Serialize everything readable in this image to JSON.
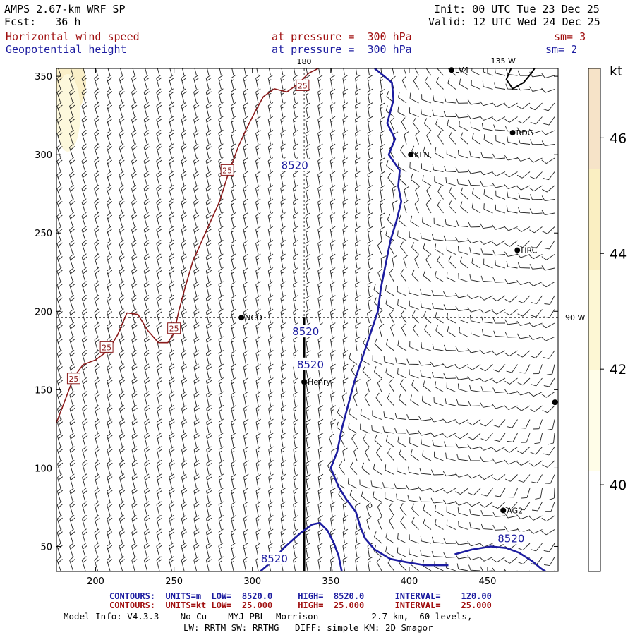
{
  "header": {
    "model_title": "AMPS 2.67-km WRF SP",
    "forecast": "Fcst:   36 h",
    "init": "Init: 00 UTC Tue 23 Dec 25",
    "valid": "Valid: 12 UTC Wed 24 Dec 25",
    "field1_name": "Horizontal wind speed",
    "field1_level": "at pressure =  300 hPa",
    "field1_sm": "sm= 3",
    "field2_name": "Geopotential height",
    "field2_level": "at pressure =  300 hPa",
    "field2_sm": "sm= 2"
  },
  "footer": {
    "line1": "CONTOURS:  UNITS=m  LOW=  8520.0     HIGH=  8520.0      INTERVAL=    120.00",
    "line2": "CONTOURS:  UNITS=kt LOW=  25.000     HIGH=  25.000      INTERVAL=    25.000",
    "model_info": "Model Info: V4.3.3    No Cu    MYJ PBL  Morrison          2.7 km,  60 levels,",
    "model_info2": "LW: RRTM SW: RRTMG   DIFF: simple KM: 2D Smagor"
  },
  "colors": {
    "height_contour": "#1c1ca0",
    "speed_contour": "#8b1a1a",
    "shade_40": "#fffde8",
    "shade_42": "#fdf7d4",
    "shade_44": "#faefc2",
    "shade_46": "#f6e3c8"
  },
  "chart_data": {
    "type": "contour-map",
    "x_ticks": [
      200,
      250,
      300,
      350,
      400,
      450
    ],
    "y_ticks": [
      50,
      100,
      150,
      200,
      250,
      300,
      350
    ],
    "xlim": [
      175,
      495
    ],
    "ylim": [
      34,
      355
    ],
    "lon_labels": {
      "top_180": "180",
      "top_135w": "135 W",
      "right_90w": "90 W"
    },
    "colorbar": {
      "unit": "kt",
      "ticks": [
        40,
        42,
        44,
        46
      ],
      "range": [
        38.5,
        47.2
      ]
    },
    "height_contour": {
      "value": 8520,
      "labels": [
        "8520",
        "8520",
        "8520",
        "8520",
        "8520"
      ],
      "main_line": [
        [
          378,
          355
        ],
        [
          389,
          346
        ],
        [
          390,
          335
        ],
        [
          386,
          320
        ],
        [
          391,
          310
        ],
        [
          387,
          300
        ],
        [
          394,
          290
        ],
        [
          393,
          280
        ],
        [
          395,
          270
        ],
        [
          392,
          258
        ],
        [
          388,
          245
        ],
        [
          385,
          230
        ],
        [
          382,
          215
        ],
        [
          380,
          200
        ],
        [
          375,
          185
        ],
        [
          370,
          170
        ],
        [
          365,
          155
        ],
        [
          361,
          140
        ],
        [
          357,
          125
        ],
        [
          354,
          110
        ],
        [
          350,
          100
        ],
        [
          355,
          88
        ],
        [
          360,
          80
        ],
        [
          366,
          72
        ],
        [
          369,
          62
        ],
        [
          372,
          55
        ],
        [
          378,
          48
        ],
        [
          388,
          42
        ],
        [
          398,
          40
        ],
        [
          410,
          38
        ],
        [
          425,
          38
        ]
      ],
      "lower_loop": [
        [
          305,
          34
        ],
        [
          312,
          40
        ],
        [
          320,
          49
        ],
        [
          330,
          58
        ],
        [
          338,
          64
        ],
        [
          343,
          65
        ],
        [
          348,
          60
        ],
        [
          352,
          52
        ],
        [
          355,
          44
        ],
        [
          357,
          34
        ]
      ],
      "right_arc": [
        [
          429,
          45
        ],
        [
          440,
          48
        ],
        [
          452,
          50
        ],
        [
          462,
          49
        ],
        [
          470,
          46
        ],
        [
          478,
          41
        ],
        [
          484,
          36
        ],
        [
          487,
          34
        ]
      ],
      "upper_blob": [
        [
          465,
          355
        ],
        [
          462,
          348
        ],
        [
          466,
          342
        ],
        [
          473,
          346
        ],
        [
          478,
          352
        ],
        [
          480,
          355
        ]
      ],
      "label_points": [
        [
          327,
          293
        ],
        [
          334,
          187
        ],
        [
          337,
          166
        ],
        [
          465,
          55
        ],
        [
          314,
          42
        ]
      ]
    },
    "speed_contour": {
      "value": 25,
      "labels": [
        "25",
        "25",
        "25",
        "25",
        "25"
      ],
      "line": [
        [
          175,
          129
        ],
        [
          180,
          142
        ],
        [
          186,
          158
        ],
        [
          192,
          166
        ],
        [
          200,
          169
        ],
        [
          208,
          175
        ],
        [
          214,
          185
        ],
        [
          220,
          199
        ],
        [
          227,
          198
        ],
        [
          233,
          188
        ],
        [
          240,
          180
        ],
        [
          246,
          180
        ],
        [
          250,
          186
        ],
        [
          253,
          200
        ],
        [
          257,
          215
        ],
        [
          262,
          232
        ],
        [
          270,
          250
        ],
        [
          279,
          270
        ],
        [
          285,
          289
        ],
        [
          291,
          305
        ],
        [
          296,
          316
        ],
        [
          302,
          328
        ],
        [
          307,
          337
        ],
        [
          314,
          342
        ],
        [
          322,
          340
        ],
        [
          329,
          345
        ],
        [
          336,
          352
        ],
        [
          342,
          355
        ]
      ],
      "label_points": [
        [
          186,
          157
        ],
        [
          207,
          177
        ],
        [
          250,
          189
        ],
        [
          284,
          290
        ],
        [
          332,
          344
        ]
      ]
    },
    "stations": [
      {
        "name": "LV4",
        "x": 427,
        "y": 354
      },
      {
        "name": "RDG",
        "x": 466,
        "y": 314
      },
      {
        "name": "KLN",
        "x": 401,
        "y": 300
      },
      {
        "name": "HRC",
        "x": 469,
        "y": 239
      },
      {
        "name": "NCO",
        "x": 293,
        "y": 196
      },
      {
        "name": "Henry",
        "x": 333,
        "y": 155
      },
      {
        "name": "AG2",
        "x": 460,
        "y": 73
      },
      {
        "name": "",
        "x": 493,
        "y": 142
      }
    ],
    "reference_lines": {
      "lon180_x": 333,
      "lat_y": 196
    },
    "wind_barbs": "gridded field of barbs; mostly northerly (speeds 5-25 kt) west of the 8520 m contour, light and variable east"
  }
}
